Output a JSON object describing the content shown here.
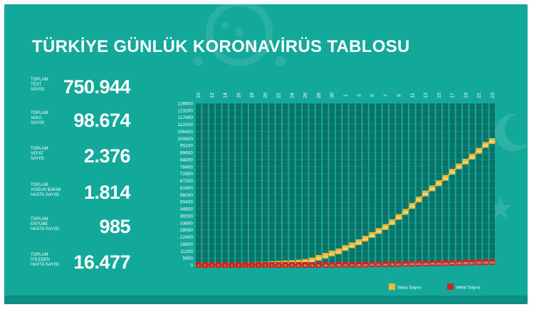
{
  "title": "TÜRKİYE GÜNLÜK KORONAVİRÜS TABLOSU",
  "stats": [
    {
      "label": [
        "TOPLAM",
        "TEST",
        "SAYISI"
      ],
      "value": "750.944"
    },
    {
      "label": [
        "TOPLAM",
        "VAKA",
        "SAYISI"
      ],
      "value": "98.674"
    },
    {
      "label": [
        "TOPLAM",
        "VEFAT",
        "SAYISI"
      ],
      "value": "2.376"
    },
    {
      "label": [
        "TOPLAM",
        "YOĞUN BAKIM",
        "HASTA SAYISI"
      ],
      "value": "1.814"
    },
    {
      "label": [
        "TOPLAM",
        "ENTUBE",
        "HASTA SAYISI"
      ],
      "value": "985"
    },
    {
      "label": [
        "TOPLAM",
        "İYİLEŞEN",
        "HASTA SAYISI"
      ],
      "value": "16.477"
    }
  ],
  "colors": {
    "background": "#12a89a",
    "grid_column": "#0b6b63",
    "cases": "#f5b82e",
    "deaths": "#c8281f"
  },
  "chart_data": {
    "type": "line",
    "x_tick_labels": [
      "10",
      "12",
      "14",
      "16",
      "18",
      "20",
      "22",
      "24",
      "26",
      "28",
      "30",
      "1",
      "3",
      "5",
      "7",
      "9",
      "11",
      "13",
      "15",
      "17",
      "19",
      "21",
      "23"
    ],
    "y_tick_labels": [
      "0",
      "5600",
      "11200",
      "16800",
      "22400",
      "28000",
      "33600",
      "39200",
      "44800",
      "50400",
      "56000",
      "61600",
      "67200",
      "72800",
      "78400",
      "84000",
      "89600",
      "95200",
      "100800",
      "106400",
      "112000",
      "117600",
      "123200",
      "128800"
    ],
    "ylim": [
      0,
      128800
    ],
    "grid": true,
    "legend_position": "bottom-right",
    "series": [
      {
        "name": "Vaka Sayısı",
        "color": "#f5b82e",
        "values": [
          1,
          1,
          1,
          5,
          5,
          6,
          18,
          47,
          98,
          191,
          359,
          670,
          947,
          1236,
          1529,
          1872,
          2433,
          3629,
          5698,
          7402,
          9217,
          10827,
          13531,
          15679,
          18135,
          20921,
          23934,
          27069,
          30217,
          34109,
          38226,
          42282,
          47029,
          52167,
          56956,
          61049,
          65111,
          69392,
          74193,
          78546,
          82329,
          86306,
          90980,
          95591,
          98674
        ]
      },
      {
        "name": "Vefat Sayısı",
        "color": "#c8281f",
        "values": [
          0,
          0,
          0,
          0,
          0,
          0,
          0,
          1,
          1,
          2,
          4,
          9,
          21,
          30,
          37,
          44,
          59,
          75,
          92,
          108,
          131,
          168,
          214,
          277,
          356,
          425,
          501,
          574,
          649,
          725,
          812,
          908,
          1006,
          1101,
          1198,
          1296,
          1403,
          1518,
          1643,
          1769,
          1890,
          2017,
          2140,
          2259,
          2376
        ]
      }
    ]
  }
}
